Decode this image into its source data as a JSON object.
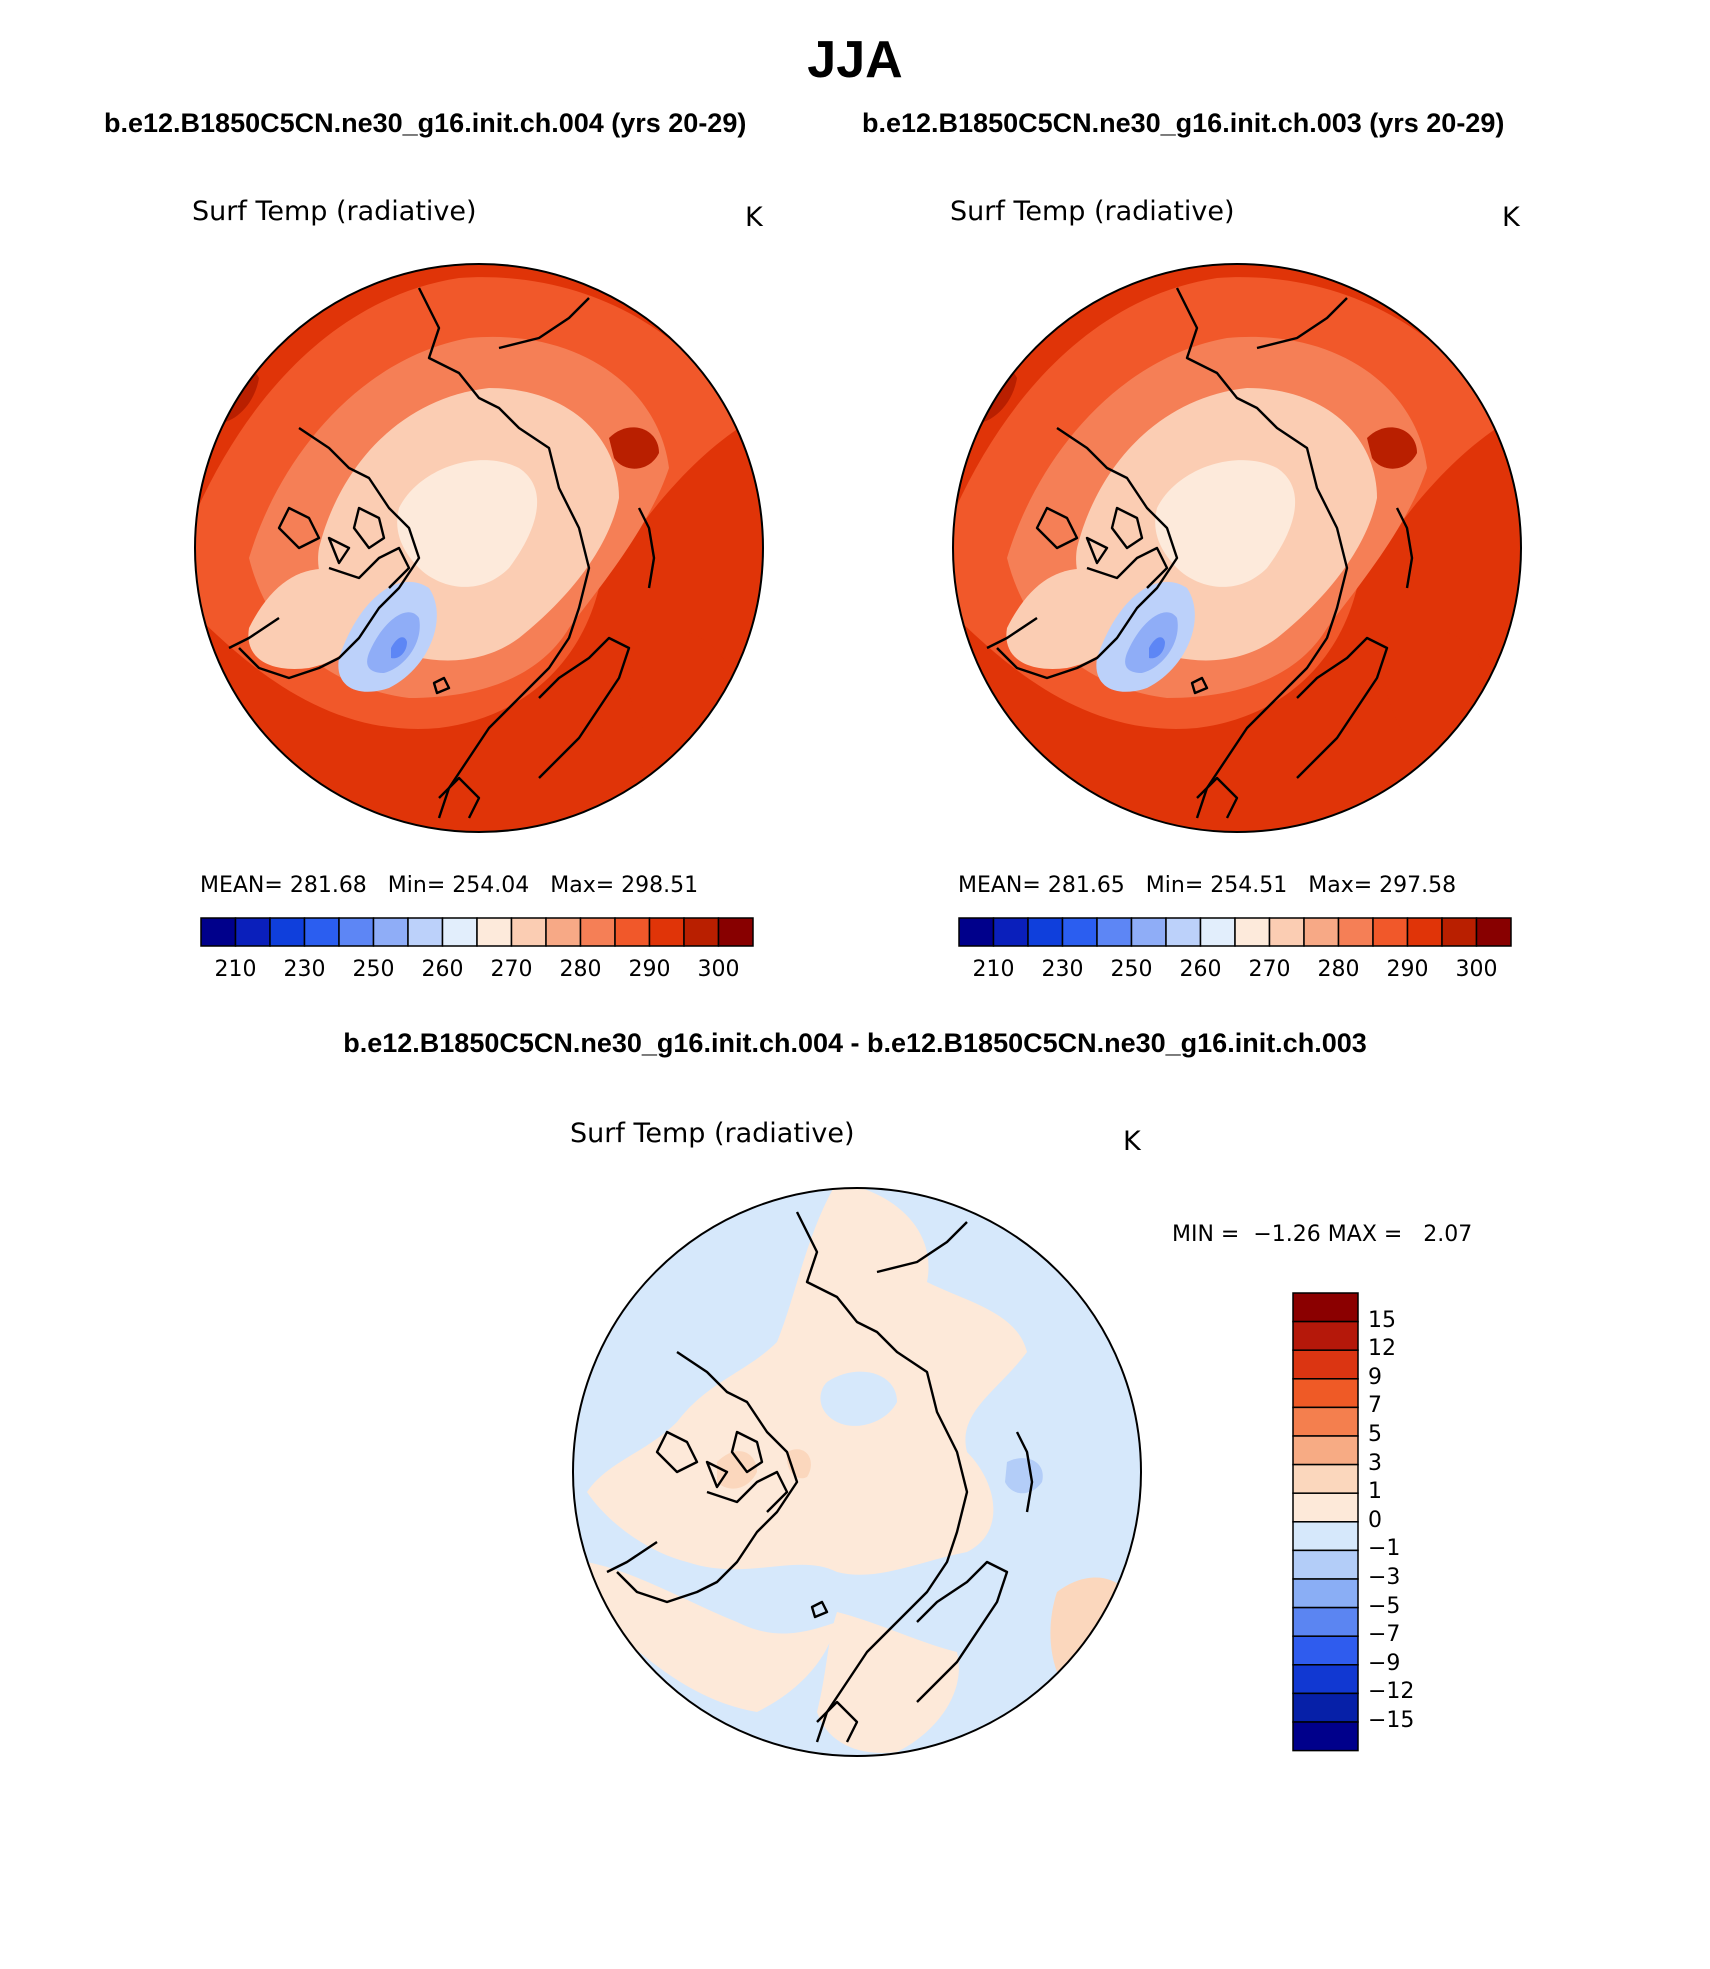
{
  "title": "JJA",
  "panels": [
    {
      "case_title": "b.e12.B1850C5CN.ne30_g16.init.ch.004 (yrs 20-29)",
      "variable": "Surf Temp (radiative)",
      "units": "K",
      "stats": {
        "mean_label": "MEAN=",
        "mean": "281.68",
        "min_label": "Min=",
        "min": "254.04",
        "max_label": "Max=",
        "max": "298.51"
      }
    },
    {
      "case_title": "b.e12.B1850C5CN.ne30_g16.init.ch.003 (yrs 20-29)",
      "variable": "Surf Temp (radiative)",
      "units": "K",
      "stats": {
        "mean_label": "MEAN=",
        "mean": "281.65",
        "min_label": "Min=",
        "min": "254.51",
        "max_label": "Max=",
        "max": "297.58"
      }
    }
  ],
  "abs_colorbar": {
    "colors": [
      "#00008b",
      "#0a1fbb",
      "#0f3fdc",
      "#2b5ef0",
      "#5d86f5",
      "#8fadf7",
      "#bcd1fa",
      "#e2eefc",
      "#fdeadb",
      "#fbcdb3",
      "#f7a986",
      "#f57f56",
      "#f1582a",
      "#e03408",
      "#b91f00",
      "#880000"
    ],
    "tick_labels": [
      "210",
      "230",
      "250",
      "260",
      "270",
      "280",
      "290",
      "300"
    ]
  },
  "difference": {
    "title": "b.e12.B1850C5CN.ne30_g16.init.ch.004 - b.e12.B1850C5CN.ne30_g16.init.ch.003",
    "variable": "Surf Temp (radiative)",
    "units": "K",
    "min_label": "MIN =",
    "min": "−1.26",
    "max_label": "MAX =",
    "max": "2.07",
    "colorbar": {
      "colors": [
        "#8b0000",
        "#b5180a",
        "#db3512",
        "#ef5a26",
        "#f47f4e",
        "#f7ab84",
        "#fbd7bd",
        "#fde9d9",
        "#d6e8fb",
        "#b3cdf8",
        "#8aaef5",
        "#5b85f2",
        "#2f5cee",
        "#1138d2",
        "#0620a8",
        "#00008b"
      ],
      "tick_labels": [
        "15",
        "12",
        "9",
        "7",
        "5",
        "3",
        "1",
        "0",
        "−1",
        "−3",
        "−5",
        "−7",
        "−9",
        "−12",
        "−15"
      ]
    }
  },
  "palette": {
    "land_outline": "#000000",
    "cold_center": "#bcd1fa",
    "warm_ring": "#e84a1a"
  }
}
